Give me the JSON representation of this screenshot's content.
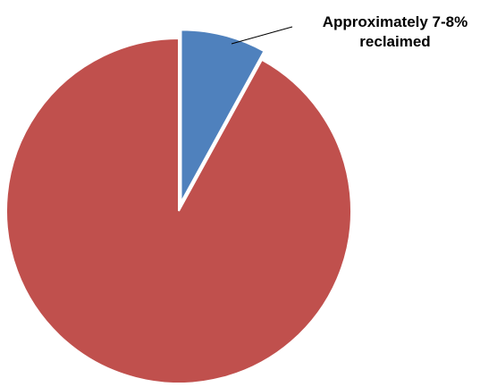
{
  "chart_data": {
    "type": "pie",
    "title": "",
    "slices": [
      {
        "value": 8,
        "color": "#4F81BD",
        "exploded": true
      },
      {
        "value": 92,
        "color": "#C0504D",
        "exploded": false
      }
    ],
    "annotation": {
      "lines": [
        "Approximately 7-8%",
        "reclaimed"
      ]
    },
    "legend": "none"
  }
}
